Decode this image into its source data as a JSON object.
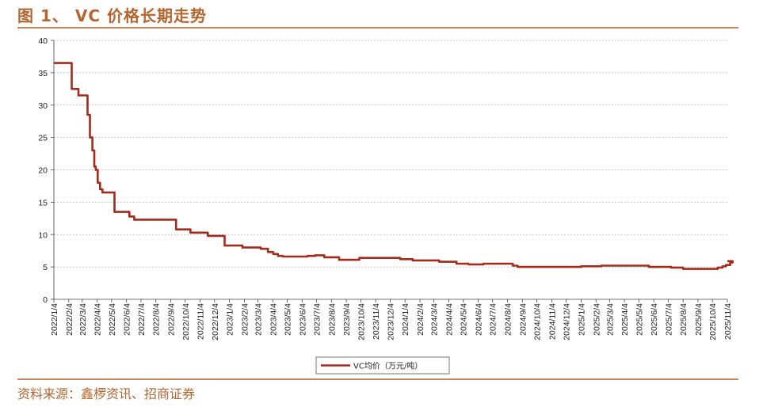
{
  "header": {
    "title": "图 1、  VC 价格长期走势"
  },
  "footer": {
    "source": "资料来源：鑫椤资讯、招商证券"
  },
  "colors": {
    "series": "#a52a1a",
    "accent": "#b5652e",
    "grid": "#9a9a9a"
  },
  "chart_data": {
    "type": "line",
    "title": "",
    "xlabel": "",
    "ylabel": "",
    "ylim": [
      0,
      40
    ],
    "yticks": [
      0,
      5,
      10,
      15,
      20,
      25,
      30,
      35,
      40
    ],
    "grid": "horizontal-dashed",
    "legend_position": "bottom-center",
    "xticks": [
      "2022/1/4",
      "2022/2/4",
      "2022/3/4",
      "2022/4/4",
      "2022/5/4",
      "2022/6/4",
      "2022/7/4",
      "2022/8/4",
      "2022/9/4",
      "2022/10/4",
      "2022/11/4",
      "2022/12/4",
      "2023/1/4",
      "2023/2/4",
      "2023/3/4",
      "2023/4/4",
      "2023/5/4",
      "2023/6/4",
      "2023/7/4",
      "2023/8/4",
      "2023/9/4",
      "2023/10/4",
      "2023/11/4",
      "2023/12/4",
      "2024/1/4",
      "2024/2/4",
      "2024/3/4",
      "2024/4/4",
      "2024/5/4",
      "2024/6/4",
      "2024/7/4",
      "2024/8/4",
      "2024/9/4",
      "2024/10/4",
      "2024/11/4",
      "2024/12/4",
      "2025/1/4",
      "2025/2/4",
      "2025/3/4",
      "2025/4/4",
      "2025/5/4",
      "2025/6/4",
      "2025/7/4",
      "2025/8/4",
      "2025/9/4",
      "2025/10/4",
      "2025/11/4"
    ],
    "series": [
      {
        "name": "VC均价（万元/吨）",
        "x": [
          "2022/1/4",
          "2022/2/10",
          "2022/2/24",
          "2022/3/15",
          "2022/3/20",
          "2022/3/25",
          "2022/3/29",
          "2022/4/1",
          "2022/4/5",
          "2022/4/10",
          "2022/4/15",
          "2022/4/25",
          "2022/5/10",
          "2022/5/25",
          "2022/6/10",
          "2022/6/20",
          "2022/7/15",
          "2022/8/1",
          "2022/9/15",
          "2022/10/15",
          "2022/11/20",
          "2022/12/25",
          "2023/1/31",
          "2023/2/8",
          "2023/3/10",
          "2023/3/25",
          "2023/4/5",
          "2023/4/15",
          "2023/4/25",
          "2023/6/15",
          "2023/7/1",
          "2023/7/20",
          "2023/8/20",
          "2023/10/1",
          "2023/11/20",
          "2023/12/25",
          "2024/1/20",
          "2024/3/15",
          "2024/4/20",
          "2024/5/15",
          "2024/6/15",
          "2024/8/15",
          "2024/8/25",
          "2024/11/4",
          "2025/1/4",
          "2025/2/15",
          "2025/5/4",
          "2025/5/25",
          "2025/7/10",
          "2025/8/4",
          "2025/10/4",
          "2025/10/15",
          "2025/10/25",
          "2025/11/1",
          "2025/11/10",
          "2025/11/15"
        ],
        "values": [
          36.5,
          32.5,
          31.5,
          28.5,
          25,
          23,
          20.5,
          20,
          18,
          17,
          16.5,
          16.5,
          13.5,
          13.5,
          12.8,
          12.3,
          12.3,
          12.3,
          10.8,
          10.3,
          9.8,
          8.3,
          8.0,
          8.0,
          7.8,
          7.3,
          7.0,
          6.7,
          6.6,
          6.7,
          6.8,
          6.5,
          6.1,
          6.4,
          6.4,
          6.2,
          6.0,
          5.8,
          5.5,
          5.4,
          5.5,
          5.2,
          5.0,
          5.0,
          5.1,
          5.2,
          5.2,
          5.0,
          4.9,
          4.7,
          4.7,
          4.9,
          5.1,
          5.3,
          5.7,
          5.9
        ]
      }
    ]
  }
}
